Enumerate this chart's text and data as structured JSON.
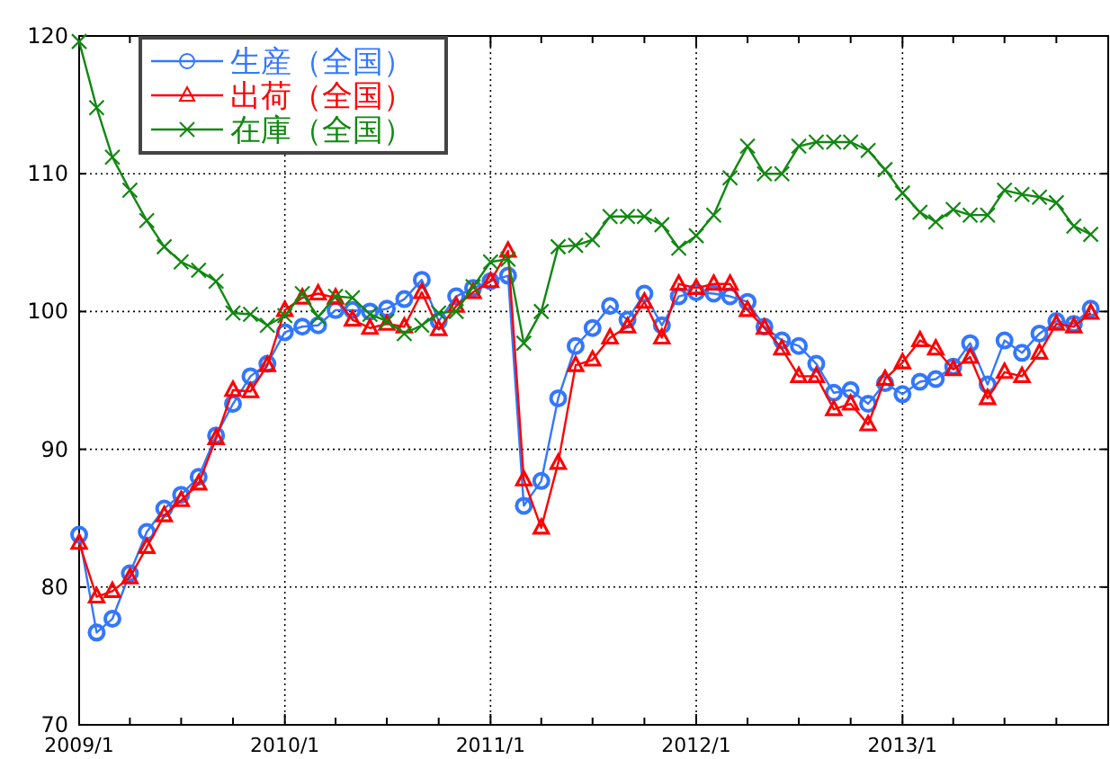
{
  "chart_data": {
    "type": "line",
    "x": [
      "2009-01",
      "2009-02",
      "2009-03",
      "2009-04",
      "2009-05",
      "2009-06",
      "2009-07",
      "2009-08",
      "2009-09",
      "2009-10",
      "2009-11",
      "2009-12",
      "2010-01",
      "2010-02",
      "2010-03",
      "2010-04",
      "2010-05",
      "2010-06",
      "2010-07",
      "2010-08",
      "2010-09",
      "2010-10",
      "2010-11",
      "2010-12",
      "2011-01",
      "2011-02",
      "2011-03",
      "2011-04",
      "2011-05",
      "2011-06",
      "2011-07",
      "2011-08",
      "2011-09",
      "2011-10",
      "2011-11",
      "2011-12",
      "2012-01",
      "2012-02",
      "2012-03",
      "2012-04",
      "2012-05",
      "2012-06",
      "2012-07",
      "2012-08",
      "2012-09",
      "2012-10",
      "2012-11",
      "2012-12",
      "2013-01",
      "2013-02",
      "2013-03",
      "2013-04",
      "2013-05",
      "2013-06",
      "2013-07",
      "2013-08",
      "2013-09",
      "2013-10",
      "2013-11",
      "2013-12"
    ],
    "series": [
      {
        "name": "生産（全国）",
        "color": "#3377ff",
        "marker": "circle",
        "values": [
          83.8,
          76.7,
          77.7,
          81.0,
          84.0,
          85.7,
          86.7,
          88.0,
          91.0,
          93.3,
          95.3,
          96.2,
          98.5,
          98.9,
          99.0,
          100.1,
          100.1,
          100.0,
          100.2,
          100.9,
          102.3,
          99.3,
          101.1,
          101.7,
          102.2,
          102.6,
          85.9,
          87.7,
          93.7,
          97.5,
          98.8,
          100.4,
          99.4,
          101.3,
          99.0,
          101.1,
          101.4,
          101.3,
          101.1,
          100.7,
          98.9,
          97.9,
          97.5,
          96.2,
          94.1,
          94.3,
          93.3,
          94.8,
          94.0,
          94.9,
          95.1,
          96.0,
          97.7,
          94.7,
          97.9,
          97.0,
          98.4,
          99.3,
          99.1,
          100.2
        ]
      },
      {
        "name": "出荷（全国）",
        "color": "#ff0000",
        "marker": "triangle",
        "values": [
          83.2,
          79.3,
          79.7,
          80.7,
          82.9,
          85.2,
          86.3,
          87.5,
          90.8,
          94.3,
          94.2,
          96.1,
          100.1,
          101.0,
          101.3,
          101.0,
          99.4,
          98.8,
          99.1,
          98.9,
          101.4,
          98.7,
          100.4,
          101.4,
          102.2,
          104.4,
          87.8,
          84.3,
          89.0,
          96.1,
          96.5,
          98.1,
          98.9,
          100.7,
          98.1,
          102.0,
          101.7,
          102.0,
          102.0,
          100.1,
          98.8,
          97.3,
          95.3,
          95.3,
          92.9,
          93.3,
          91.8,
          95.1,
          96.3,
          97.9,
          97.3,
          95.8,
          96.7,
          93.7,
          95.6,
          95.3,
          97.0,
          99.1,
          98.9,
          99.9
        ]
      },
      {
        "name": "在庫（全国）",
        "color": "#118811",
        "marker": "cross",
        "values": [
          119.6,
          114.8,
          111.2,
          108.8,
          106.6,
          104.7,
          103.6,
          103.0,
          102.2,
          99.9,
          99.8,
          99.0,
          99.7,
          101.3,
          99.6,
          101.1,
          101.0,
          99.8,
          99.3,
          98.4,
          99.0,
          99.9,
          100.0,
          101.8,
          103.6,
          103.8,
          97.7,
          100.0,
          104.7,
          104.8,
          105.2,
          106.9,
          106.9,
          106.9,
          106.3,
          104.6,
          105.5,
          107.0,
          109.7,
          112.0,
          110.0,
          110.0,
          112.0,
          112.3,
          112.3,
          112.3,
          111.7,
          110.3,
          108.6,
          107.2,
          106.5,
          107.4,
          107.0,
          107.0,
          108.8,
          108.5,
          108.3,
          107.9,
          106.2,
          105.6
        ]
      }
    ],
    "xlim": [
      "2009-01",
      "2014-01"
    ],
    "xticks": [
      {
        "value": "2009-01",
        "label": "2009/1"
      },
      {
        "value": "2009-04",
        "label": null
      },
      {
        "value": "2009-07",
        "label": null
      },
      {
        "value": "2009-10",
        "label": null
      },
      {
        "value": "2010-01",
        "label": "2010/1"
      },
      {
        "value": "2010-04",
        "label": null
      },
      {
        "value": "2010-07",
        "label": null
      },
      {
        "value": "2010-10",
        "label": null
      },
      {
        "value": "2011-01",
        "label": "2011/1"
      },
      {
        "value": "2011-04",
        "label": null
      },
      {
        "value": "2011-07",
        "label": null
      },
      {
        "value": "2011-10",
        "label": null
      },
      {
        "value": "2012-01",
        "label": "2012/1"
      },
      {
        "value": "2012-04",
        "label": null
      },
      {
        "value": "2012-07",
        "label": null
      },
      {
        "value": "2012-10",
        "label": null
      },
      {
        "value": "2013-01",
        "label": "2013/1"
      },
      {
        "value": "2013-04",
        "label": null
      },
      {
        "value": "2013-07",
        "label": null
      },
      {
        "value": "2013-10",
        "label": null
      }
    ],
    "ylim": [
      70,
      120
    ],
    "yticks": [
      70,
      80,
      90,
      100,
      110,
      120
    ],
    "grid": true,
    "legend": "top left",
    "line_style": "solid"
  }
}
